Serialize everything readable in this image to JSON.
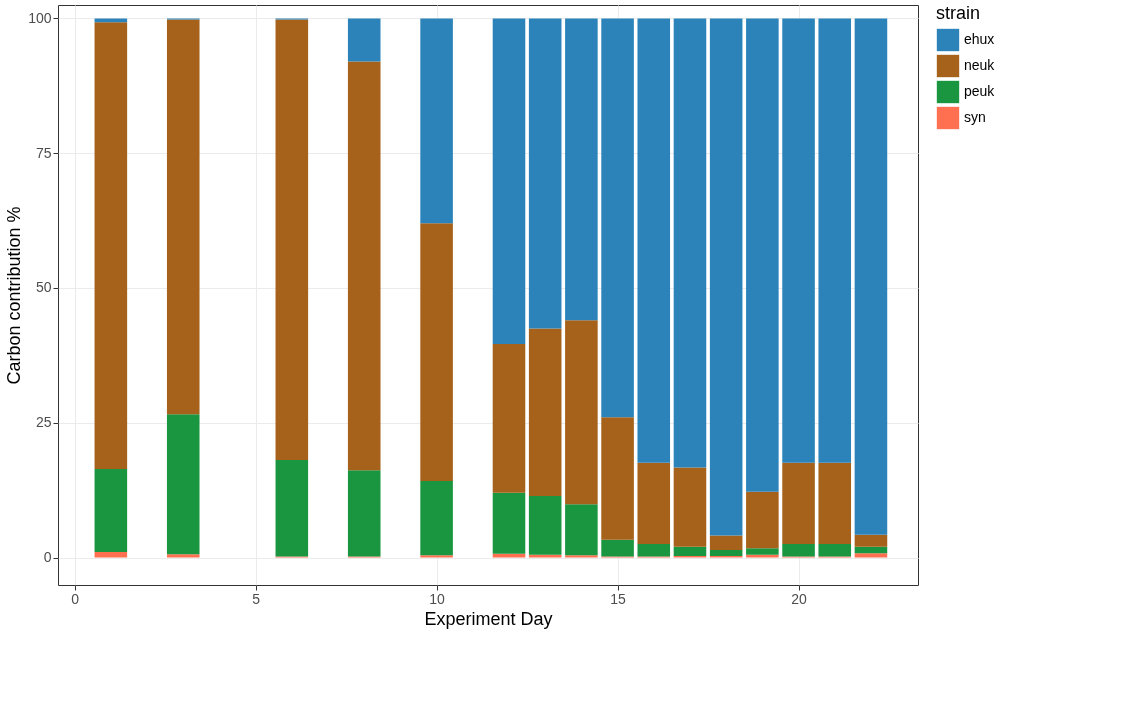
{
  "chart_data": {
    "type": "bar",
    "stacked": true,
    "xlabel": "Experiment Day",
    "ylabel": "Carbon contribution %",
    "legend_title": "strain",
    "legend": "right",
    "x": [
      1,
      3,
      6,
      8,
      10,
      12,
      13,
      14,
      15,
      16,
      17,
      18,
      19,
      20,
      21,
      22
    ],
    "xlim": [
      -0.46,
      23.3
    ],
    "xticks": [
      0,
      5,
      10,
      15,
      20
    ],
    "ylim": [
      -5.1,
      102.5
    ],
    "yticks": [
      0,
      25,
      50,
      75,
      100
    ],
    "grid": true,
    "series": [
      {
        "name": "syn",
        "color": "#ff7050",
        "values": [
          1.0,
          0.6,
          0.2,
          0.2,
          0.4,
          0.7,
          0.5,
          0.4,
          0.2,
          0.2,
          0.3,
          0.3,
          0.5,
          0.2,
          0.2,
          0.8
        ]
      },
      {
        "name": "peuk",
        "color": "#1b9640",
        "values": [
          15.4,
          26.0,
          17.9,
          16.0,
          13.8,
          11.3,
          10.9,
          9.5,
          3.1,
          2.3,
          1.7,
          1.1,
          1.2,
          2.3,
          2.3,
          1.2
        ]
      },
      {
        "name": "neuk",
        "color": "#a6611a",
        "values": [
          82.9,
          73.2,
          81.7,
          75.8,
          47.8,
          27.6,
          31.1,
          34.1,
          22.7,
          15.1,
          14.7,
          2.7,
          10.5,
          15.1,
          15.1,
          2.2
        ]
      },
      {
        "name": "ehux",
        "color": "#2c83ba",
        "values": [
          0.7,
          0.2,
          0.2,
          8.0,
          38.0,
          60.4,
          57.5,
          56.0,
          74.0,
          82.4,
          83.3,
          95.9,
          87.8,
          82.4,
          82.4,
          95.8
        ]
      }
    ]
  }
}
